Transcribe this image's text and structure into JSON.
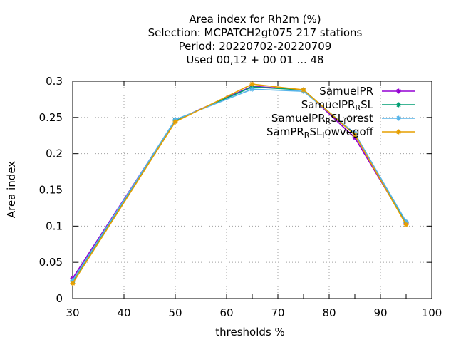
{
  "chart_data": {
    "type": "line",
    "title_lines": [
      "Area index  for Rh2m (%)",
      "Selection: MCPATCH2gt075    217 stations",
      "Period: 20220702-20220709",
      "Used  00,12  + 00 01 ... 48"
    ],
    "xlabel": "thresholds %",
    "ylabel": "Area index",
    "xlim": [
      30,
      100
    ],
    "ylim": [
      0,
      0.3
    ],
    "xticks": [
      30,
      40,
      50,
      60,
      70,
      80,
      90,
      100
    ],
    "xtick_labels": [
      "30",
      "40",
      "50",
      "60",
      "70",
      "80",
      "90",
      "100"
    ],
    "yticks": [
      0,
      0.05,
      0.1,
      0.15,
      0.2,
      0.25,
      0.3
    ],
    "ytick_labels": [
      "0",
      "0.05",
      "0.1",
      "0.15",
      "0.2",
      "0.25",
      "0.3"
    ],
    "grid": true,
    "legend_position": "top-right",
    "x": [
      30,
      50,
      65,
      75,
      85,
      95
    ],
    "series": [
      {
        "name": "SamuelPR",
        "color": "#9400d3",
        "values": [
          0.028,
          0.246,
          0.293,
          0.288,
          0.222,
          0.104
        ]
      },
      {
        "name": "SamuelPR_RSL",
        "color": "#009e73",
        "values": [
          0.024,
          0.246,
          0.292,
          0.288,
          0.226,
          0.105
        ]
      },
      {
        "name": "SamuelPR_RSL_forest",
        "color": "#56b4e9",
        "values": [
          0.025,
          0.247,
          0.289,
          0.286,
          0.228,
          0.106
        ]
      },
      {
        "name": "SamPR_RSL_lowvegoff",
        "color": "#e69f00",
        "values": [
          0.021,
          0.244,
          0.296,
          0.288,
          0.226,
          0.102
        ]
      }
    ]
  }
}
